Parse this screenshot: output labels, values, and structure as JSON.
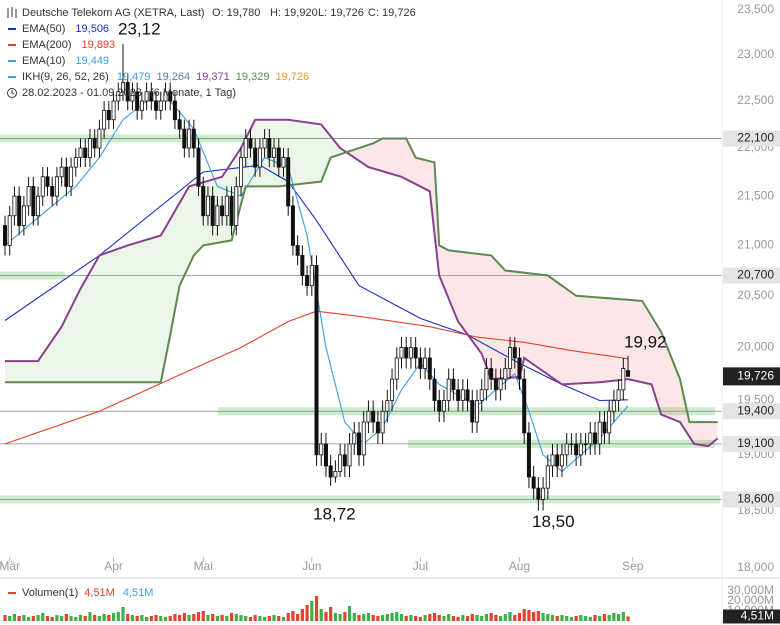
{
  "chart_data": {
    "type": "candlestick",
    "title": "Deutsche Telekom AG (XETRA, Last)",
    "header_values": [
      "O: 19,780",
      "H: 19,920",
      "L: 19,726",
      "C: 19,726"
    ],
    "range_label": "28.02.2023 - 01.09.2023",
    "range_note": "(6 Monate, 1 Tag)",
    "log_scale": true,
    "ylim": [
      18,
      23.5
    ],
    "yticks": [
      {
        "value": 23.5,
        "label": "23,500"
      },
      {
        "value": 23,
        "label": "23,000"
      },
      {
        "value": 22.5,
        "label": "22,500"
      },
      {
        "value": 22,
        "label": "22,000"
      },
      {
        "value": 21.5,
        "label": "21,500"
      },
      {
        "value": 21,
        "label": "21,000"
      },
      {
        "value": 20.5,
        "label": "20,500"
      },
      {
        "value": 20,
        "label": "20,000"
      },
      {
        "value": 19.5,
        "label": "19,500"
      },
      {
        "value": 19,
        "label": "19,000"
      },
      {
        "value": 18.5,
        "label": "18,500"
      },
      {
        "value": 18,
        "label": "18,000"
      }
    ],
    "xticks": [
      {
        "value": 1,
        "label": "Mär"
      },
      {
        "value": 23,
        "label": "Apr"
      },
      {
        "value": 42,
        "label": "Mai"
      },
      {
        "value": 65,
        "label": "Jun"
      },
      {
        "value": 88,
        "label": "Jul"
      },
      {
        "value": 109,
        "label": "Aug"
      },
      {
        "value": 133,
        "label": "Sep"
      }
    ],
    "candles": {
      "up_color": "#ffffff",
      "down_color": "#111111",
      "open": [
        21.2,
        21.0,
        21.3,
        21.5,
        21.2,
        21.4,
        21.6,
        21.3,
        21.5,
        21.7,
        21.6,
        21.5,
        21.7,
        21.8,
        21.6,
        21.8,
        21.9,
        22.0,
        21.9,
        22.1,
        22.0,
        22.2,
        22.4,
        22.3,
        22.5,
        22.6,
        22.7,
        22.5,
        22.6,
        22.4,
        22.5,
        22.6,
        22.5,
        22.4,
        22.5,
        22.6,
        22.5,
        22.3,
        22.2,
        22.0,
        22.2,
        22.0,
        21.6,
        21.3,
        21.5,
        21.2,
        21.4,
        21.3,
        21.5,
        21.2,
        21.6,
        21.9,
        22.1,
        22.0,
        21.8,
        22.0,
        22.1,
        21.9,
        22.0,
        21.8,
        21.9,
        21.4,
        21.0,
        20.9,
        20.7,
        20.6,
        20.8,
        19.0,
        19.1,
        18.9,
        18.8,
        18.85,
        19.0,
        18.9,
        19.1,
        19.2,
        19.0,
        19.3,
        19.4,
        19.3,
        19.2,
        19.4,
        19.5,
        19.7,
        19.9,
        20.0,
        19.9,
        20.0,
        19.9,
        19.8,
        19.9,
        19.7,
        19.5,
        19.4,
        19.5,
        19.7,
        19.6,
        19.5,
        19.6,
        19.5,
        19.3,
        19.5,
        19.6,
        19.8,
        19.7,
        19.6,
        19.7,
        19.8,
        20.0,
        19.9,
        19.7,
        19.2,
        18.8,
        18.7,
        18.6,
        18.7,
        18.9,
        19.0,
        18.9,
        19.0,
        19.1,
        19.1,
        19.0,
        19.1,
        19.1,
        19.2,
        19.1,
        19.3,
        19.2,
        19.4,
        19.5,
        19.6,
        19.78
      ],
      "high": [
        21.3,
        21.4,
        21.6,
        21.6,
        21.5,
        21.7,
        21.7,
        21.6,
        21.8,
        21.8,
        21.7,
        21.8,
        21.9,
        21.9,
        21.9,
        22.0,
        22.1,
        22.1,
        22.2,
        22.2,
        22.3,
        22.5,
        22.5,
        22.6,
        22.7,
        23.12,
        22.8,
        22.7,
        22.7,
        22.6,
        22.7,
        22.7,
        22.6,
        22.6,
        22.7,
        22.7,
        22.6,
        22.4,
        22.3,
        22.3,
        22.3,
        22.1,
        21.7,
        21.6,
        21.6,
        21.5,
        21.5,
        21.6,
        21.6,
        21.7,
        22.0,
        22.2,
        22.2,
        22.1,
        22.1,
        22.2,
        22.2,
        22.1,
        22.1,
        22.0,
        22.0,
        21.5,
        21.1,
        21.0,
        20.8,
        20.9,
        20.9,
        19.2,
        19.2,
        19.0,
        18.95,
        19.1,
        19.1,
        19.2,
        19.3,
        19.3,
        19.4,
        19.5,
        19.5,
        19.4,
        19.5,
        19.6,
        19.8,
        20.0,
        20.1,
        20.1,
        20.1,
        20.1,
        20.0,
        20.0,
        20.0,
        19.8,
        19.6,
        19.6,
        19.8,
        19.8,
        19.7,
        19.7,
        19.7,
        19.6,
        19.6,
        19.7,
        19.9,
        19.9,
        19.8,
        19.8,
        19.9,
        20.1,
        20.1,
        20.0,
        19.8,
        19.3,
        18.9,
        18.8,
        18.8,
        19.0,
        19.1,
        19.1,
        19.1,
        19.2,
        19.2,
        19.2,
        19.2,
        19.2,
        19.3,
        19.3,
        19.4,
        19.4,
        19.5,
        19.6,
        19.7,
        19.9,
        19.92
      ],
      "low": [
        20.9,
        20.9,
        21.2,
        21.1,
        21.1,
        21.3,
        21.2,
        21.2,
        21.4,
        21.5,
        21.4,
        21.4,
        21.6,
        21.5,
        21.5,
        21.7,
        21.8,
        21.8,
        21.8,
        21.9,
        21.9,
        22.1,
        22.2,
        22.2,
        22.4,
        22.5,
        22.4,
        22.4,
        22.3,
        22.3,
        22.4,
        22.4,
        22.3,
        22.3,
        22.4,
        22.4,
        22.2,
        22.1,
        21.9,
        21.9,
        21.9,
        21.5,
        21.2,
        21.2,
        21.1,
        21.1,
        21.2,
        21.2,
        21.1,
        21.1,
        21.5,
        21.8,
        21.9,
        21.7,
        21.7,
        21.9,
        21.8,
        21.8,
        21.7,
        21.7,
        21.3,
        20.9,
        20.8,
        20.6,
        20.5,
        20.5,
        18.9,
        18.9,
        18.8,
        18.72,
        18.75,
        18.8,
        18.8,
        18.8,
        19.0,
        18.9,
        18.9,
        19.2,
        19.2,
        19.1,
        19.1,
        19.3,
        19.4,
        19.6,
        19.8,
        19.8,
        19.8,
        19.8,
        19.7,
        19.7,
        19.6,
        19.4,
        19.3,
        19.3,
        19.4,
        19.5,
        19.4,
        19.4,
        19.4,
        19.2,
        19.2,
        19.4,
        19.5,
        19.6,
        19.5,
        19.5,
        19.6,
        19.7,
        19.8,
        19.6,
        19.1,
        18.7,
        18.6,
        18.5,
        18.5,
        18.6,
        18.8,
        18.8,
        18.8,
        18.9,
        19.0,
        18.9,
        18.9,
        19.0,
        19.0,
        19.0,
        19.0,
        19.1,
        19.1,
        19.3,
        19.4,
        19.5,
        19.726
      ],
      "close": [
        21.0,
        21.3,
        21.5,
        21.2,
        21.4,
        21.6,
        21.3,
        21.5,
        21.7,
        21.6,
        21.5,
        21.7,
        21.8,
        21.6,
        21.8,
        21.9,
        22.0,
        21.9,
        22.1,
        22.0,
        22.2,
        22.4,
        22.3,
        22.5,
        22.6,
        22.7,
        22.5,
        22.6,
        22.4,
        22.5,
        22.6,
        22.5,
        22.4,
        22.5,
        22.6,
        22.5,
        22.3,
        22.2,
        22.0,
        22.2,
        22.0,
        21.6,
        21.3,
        21.5,
        21.2,
        21.4,
        21.3,
        21.5,
        21.2,
        21.6,
        21.9,
        22.1,
        22.0,
        21.8,
        22.0,
        22.1,
        21.9,
        22.0,
        21.8,
        21.9,
        21.4,
        21.0,
        20.9,
        20.7,
        20.6,
        20.8,
        19.0,
        19.1,
        18.9,
        18.8,
        18.85,
        19.0,
        18.9,
        19.1,
        19.2,
        19.0,
        19.3,
        19.4,
        19.3,
        19.2,
        19.4,
        19.5,
        19.7,
        19.9,
        20.0,
        19.9,
        20.0,
        19.9,
        19.8,
        19.9,
        19.7,
        19.5,
        19.4,
        19.5,
        19.7,
        19.6,
        19.5,
        19.6,
        19.5,
        19.3,
        19.5,
        19.6,
        19.8,
        19.7,
        19.6,
        19.7,
        19.8,
        20.0,
        19.9,
        19.7,
        19.2,
        18.8,
        18.7,
        18.6,
        18.7,
        18.9,
        19.0,
        18.9,
        19.0,
        19.1,
        19.1,
        19.0,
        19.1,
        19.1,
        19.2,
        19.1,
        19.3,
        19.2,
        19.4,
        19.5,
        19.6,
        19.8,
        19.726
      ]
    },
    "series": [
      {
        "name": "EMA(50)",
        "label": "19,506",
        "color": "#1c2fc4",
        "x": [
          0,
          20,
          42,
          54,
          60,
          66,
          75,
          88,
          98,
          109,
          118,
          126,
          132
        ],
        "values": [
          20.26,
          20.9,
          21.75,
          21.82,
          21.65,
          21.25,
          20.6,
          20.28,
          20.12,
          19.85,
          19.65,
          19.5,
          19.506
        ]
      },
      {
        "name": "EMA(200)",
        "label": "19,893",
        "color": "#e5412d",
        "x": [
          0,
          20,
          40,
          50,
          60,
          66,
          75,
          90,
          100,
          110,
          120,
          132
        ],
        "values": [
          19.1,
          19.4,
          19.8,
          20.0,
          20.25,
          20.35,
          20.3,
          20.2,
          20.1,
          20.05,
          19.97,
          19.893
        ]
      },
      {
        "name": "EMA(10)",
        "label": "19,449",
        "color": "#3b9de2",
        "x": [
          0,
          5,
          10,
          15,
          20,
          25,
          30,
          35,
          40,
          45,
          50,
          55,
          60,
          64,
          68,
          72,
          76,
          80,
          84,
          88,
          92,
          96,
          100,
          104,
          108,
          111,
          114,
          118,
          122,
          126,
          130,
          132
        ],
        "values": [
          21.0,
          21.2,
          21.4,
          21.6,
          21.9,
          22.3,
          22.5,
          22.5,
          22.2,
          21.6,
          21.5,
          21.9,
          21.8,
          21.1,
          20.0,
          19.3,
          19.1,
          19.25,
          19.6,
          19.85,
          19.65,
          19.55,
          19.45,
          19.6,
          19.75,
          19.4,
          19.0,
          18.85,
          19.0,
          19.15,
          19.35,
          19.449
        ]
      }
    ],
    "ichimoku": {
      "name": "IKH(9, 26, 52, 26)",
      "icon_color": "#3b9de2",
      "labels": [
        {
          "text": "19,479",
          "color": "#3b9de2"
        },
        {
          "text": "19,264",
          "color": "#5b7fa6"
        },
        {
          "text": "19,371",
          "color": "#8b3f8e"
        },
        {
          "text": "19,329",
          "color": "#5b8a4c"
        },
        {
          "text": "19,726",
          "color": "#e89a2c"
        }
      ],
      "span_a": {
        "color": "#8b3f8e",
        "x": [
          0,
          7,
          12,
          16,
          20,
          26,
          33,
          39,
          46,
          50,
          53,
          60,
          67,
          71,
          77,
          84,
          90,
          92,
          96,
          101,
          103,
          109,
          110,
          118,
          126,
          132,
          137,
          139,
          143,
          146,
          149,
          151
        ],
        "values": [
          19.87,
          19.87,
          20.2,
          20.57,
          20.9,
          21.0,
          21.1,
          21.6,
          21.7,
          22.0,
          22.3,
          22.3,
          22.25,
          22.0,
          21.8,
          21.7,
          21.55,
          20.7,
          20.25,
          19.94,
          19.7,
          19.72,
          19.9,
          19.65,
          19.67,
          19.7,
          19.65,
          19.37,
          19.3,
          19.1,
          19.08,
          19.15
        ]
      },
      "span_b": {
        "color": "#5b8a4c",
        "x": [
          0,
          33,
          35,
          37,
          40,
          42,
          48,
          51,
          58,
          67,
          69,
          72,
          78,
          80,
          85,
          87,
          91,
          92,
          94,
          103,
          106,
          115,
          121,
          135,
          139,
          143,
          145,
          149,
          151
        ],
        "values": [
          19.67,
          19.67,
          20.12,
          20.6,
          20.9,
          21.0,
          21.05,
          21.6,
          21.6,
          21.65,
          21.9,
          21.95,
          22.05,
          22.1,
          22.1,
          21.9,
          21.85,
          21.0,
          20.95,
          20.9,
          20.75,
          20.7,
          20.5,
          20.45,
          20.15,
          19.7,
          19.3,
          19.3,
          19.3
        ]
      },
      "up_fill": "rgba(120,190,100,0.15)",
      "down_fill": "rgba(230,110,110,0.17)"
    },
    "levels": [
      {
        "value": 22.1,
        "label": "22,100"
      },
      {
        "value": 20.7,
        "label": "20,700"
      },
      {
        "value": 19.4,
        "label": "19,400"
      },
      {
        "value": 19.1,
        "label": "19,100"
      },
      {
        "value": 18.6,
        "label": "18,600"
      }
    ],
    "zone_color": "rgba(110,200,110,0.35)",
    "last_price": {
      "value": 19.726,
      "label": "19,726"
    },
    "annotations": [
      {
        "value": 23.12,
        "label": "23,12"
      },
      {
        "value": 18.72,
        "label": "18,72"
      },
      {
        "value": 18.5,
        "label": "18,50"
      },
      {
        "value": 19.92,
        "label": "19,92"
      }
    ],
    "volume": {
      "name": "Volumen(1)",
      "legend_values": [
        {
          "text": "4,51M",
          "color": "#e5412d"
        },
        {
          "text": "4,51M",
          "color": "#3b9de2"
        }
      ],
      "last_label": "4,51M",
      "up_color": "#3cb04a",
      "down_color": "#e5412d",
      "ylim": [
        0,
        36
      ],
      "yticks": [
        {
          "value": 30,
          "label": "30,000M"
        },
        {
          "value": 20,
          "label": "20,000M"
        },
        {
          "value": 10,
          "label": "10,000M"
        }
      ],
      "values": [
        6,
        5,
        7,
        5,
        6,
        4,
        5,
        6,
        8,
        5,
        4,
        6,
        5,
        7,
        5,
        4,
        6,
        5,
        9,
        6,
        5,
        7,
        6,
        8,
        9,
        14,
        7,
        6,
        5,
        6,
        4,
        5,
        6,
        5,
        4,
        5,
        7,
        6,
        8,
        6,
        7,
        9,
        10,
        6,
        7,
        5,
        6,
        5,
        8,
        7,
        6,
        5,
        4,
        6,
        5,
        4,
        5,
        6,
        5,
        4,
        8,
        10,
        7,
        12,
        16,
        20,
        25,
        12,
        9,
        14,
        8,
        7,
        9,
        15,
        8,
        6,
        7,
        8,
        6,
        5,
        6,
        7,
        8,
        9,
        7,
        5,
        6,
        5,
        4,
        6,
        7,
        8,
        6,
        5,
        7,
        5,
        4,
        6,
        5,
        7,
        6,
        5,
        7,
        8,
        6,
        5,
        7,
        9,
        6,
        8,
        12,
        11,
        9,
        10,
        8,
        7,
        6,
        5,
        6,
        5,
        4,
        5,
        6,
        5,
        4,
        6,
        5,
        7,
        6,
        8,
        7,
        9,
        4.51
      ]
    }
  }
}
